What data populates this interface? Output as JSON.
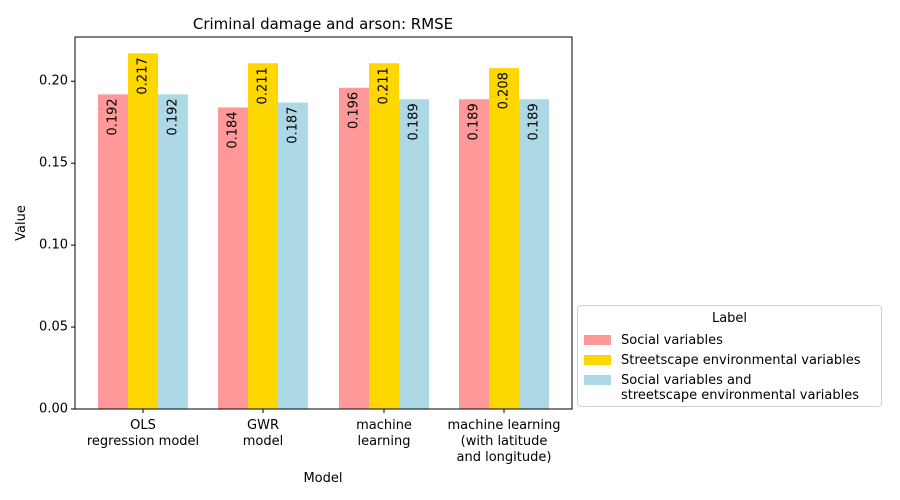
{
  "chart_data": {
    "type": "bar",
    "title": "Criminal damage and arson: RMSE",
    "xlabel": "Model",
    "ylabel": "Value",
    "ylim": [
      0,
      0.227
    ],
    "yticks": [
      "0.00",
      "0.05",
      "0.10",
      "0.15",
      "0.20"
    ],
    "ytick_values": [
      0,
      0.05,
      0.1,
      0.15,
      0.2
    ],
    "categories": [
      "OLS\nregression model",
      "GWR\nmodel",
      "machine\nlearning",
      "machine learning\n(with latitude\nand longitude)"
    ],
    "series": [
      {
        "name": "Social variables",
        "color": "#ff9999",
        "values": [
          0.192,
          0.184,
          0.196,
          0.189
        ],
        "labels": [
          "0.192",
          "0.184",
          "0.196",
          "0.189"
        ]
      },
      {
        "name": "Streetscape environmental variables",
        "color": "#ffd700",
        "values": [
          0.217,
          0.211,
          0.211,
          0.208
        ],
        "labels": [
          "0.217",
          "0.211",
          "0.211",
          "0.208"
        ]
      },
      {
        "name": "Social variables and\nstreetscape environmental variables",
        "color": "#add8e6",
        "values": [
          0.192,
          0.187,
          0.189,
          0.189
        ],
        "labels": [
          "0.192",
          "0.187",
          "0.189",
          "0.189"
        ]
      }
    ],
    "legend": {
      "title": "Label",
      "placement": "outside-right-bottom"
    },
    "grid": false
  }
}
